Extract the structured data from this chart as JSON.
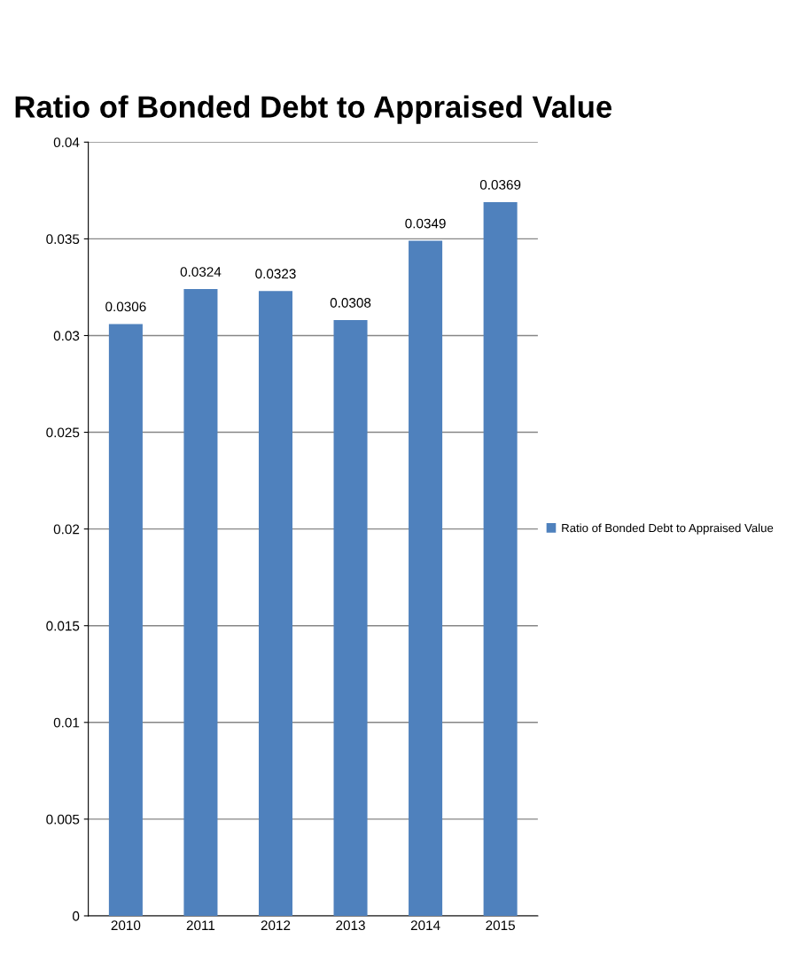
{
  "chart_data": {
    "type": "bar",
    "title": "Ratio of Bonded Debt to Appraised Value",
    "categories": [
      "2010",
      "2011",
      "2012",
      "2013",
      "2014",
      "2015"
    ],
    "series": [
      {
        "name": "Ratio of Bonded Debt to Appraised Value",
        "color": "#4f81bd",
        "values": [
          0.0306,
          0.0324,
          0.0323,
          0.0308,
          0.0349,
          0.0369
        ]
      }
    ],
    "ylim": [
      0,
      0.04
    ],
    "yticks": [
      0,
      0.005,
      0.01,
      0.015,
      0.02,
      0.025,
      0.03,
      0.035,
      0.04
    ],
    "grid": "y",
    "legend": "right",
    "data_labels": true
  }
}
